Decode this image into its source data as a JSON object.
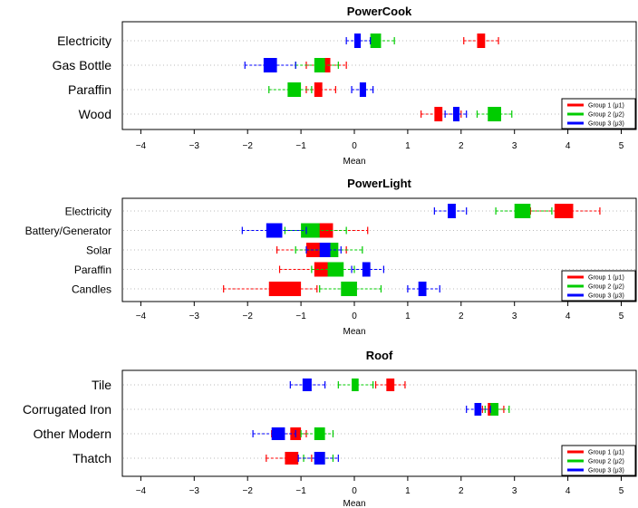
{
  "colors": {
    "group1": "#ff0000",
    "group2": "#00cc00",
    "group3": "#0000ff",
    "grid": "#bbbbbb"
  },
  "legend": {
    "position": "bottom-right",
    "labels": [
      "Group 1 (μ1)",
      "Group 2 (μ2)",
      "Group 3 (μ3)"
    ]
  },
  "chart_data": [
    {
      "type": "box",
      "title": "PowerCook",
      "xlabel": "Mean",
      "xlim": [
        -4.5,
        5.3
      ],
      "xticks": [
        -4,
        -3,
        -2,
        -1,
        0,
        1,
        2,
        3,
        4,
        5
      ],
      "categories": [
        "Electricity",
        "Gas Bottle",
        "Paraffin",
        "Wood"
      ],
      "series": [
        {
          "name": "Group 1 (μ1)",
          "values": [
            {
              "whisker": [
                2.05,
                2.7
              ],
              "box": [
                2.3,
                2.45
              ]
            },
            {
              "whisker": [
                -0.9,
                -0.15
              ],
              "box": [
                -0.6,
                -0.45
              ]
            },
            {
              "whisker": [
                -0.9,
                -0.35
              ],
              "box": [
                -0.75,
                -0.6
              ]
            },
            {
              "whisker": [
                1.25,
                2.0
              ],
              "box": [
                1.5,
                1.65
              ]
            }
          ]
        },
        {
          "name": "Group 2 (μ2)",
          "values": [
            {
              "whisker": [
                0.1,
                0.75
              ],
              "box": [
                0.3,
                0.5
              ]
            },
            {
              "whisker": [
                -1.1,
                -0.3
              ],
              "box": [
                -0.75,
                -0.55
              ]
            },
            {
              "whisker": [
                -1.6,
                -0.8
              ],
              "box": [
                -1.25,
                -1.0
              ]
            },
            {
              "whisker": [
                2.3,
                2.95
              ],
              "box": [
                2.5,
                2.75
              ]
            }
          ]
        },
        {
          "name": "Group 3 (μ3)",
          "values": [
            {
              "whisker": [
                -0.15,
                0.3
              ],
              "box": [
                0.0,
                0.12
              ]
            },
            {
              "whisker": [
                -2.05,
                -1.1
              ],
              "box": [
                -1.7,
                -1.45
              ]
            },
            {
              "whisker": [
                -0.05,
                0.35
              ],
              "box": [
                0.1,
                0.22
              ]
            },
            {
              "whisker": [
                1.7,
                2.1
              ],
              "box": [
                1.85,
                1.97
              ]
            }
          ]
        }
      ]
    },
    {
      "type": "box",
      "title": "PowerLight",
      "xlabel": "Mean",
      "xlim": [
        -4.5,
        5.3
      ],
      "xticks": [
        -4,
        -3,
        -2,
        -1,
        0,
        1,
        2,
        3,
        4,
        5
      ],
      "categories": [
        "Electricity",
        "Battery/Generator",
        "Solar",
        "Paraffin",
        "Candles"
      ],
      "series": [
        {
          "name": "Group 1 (μ1)",
          "values": [
            {
              "whisker": [
                3.3,
                4.6
              ],
              "box": [
                3.75,
                4.1
              ]
            },
            {
              "whisker": [
                -0.8,
                0.25
              ],
              "box": [
                -0.7,
                -0.4
              ]
            },
            {
              "whisker": [
                -1.45,
                -0.15
              ],
              "box": [
                -0.9,
                -0.6
              ]
            },
            {
              "whisker": [
                -1.4,
                -0.3
              ],
              "box": [
                -0.75,
                -0.45
              ]
            },
            {
              "whisker": [
                -2.45,
                -0.7
              ],
              "box": [
                -1.6,
                -1.0
              ]
            }
          ]
        },
        {
          "name": "Group 2 (μ2)",
          "values": [
            {
              "whisker": [
                2.65,
                3.7
              ],
              "box": [
                3.0,
                3.3
              ]
            },
            {
              "whisker": [
                -1.3,
                -0.15
              ],
              "box": [
                -1.0,
                -0.65
              ]
            },
            {
              "whisker": [
                -1.1,
                0.15
              ],
              "box": [
                -0.5,
                -0.3
              ]
            },
            {
              "whisker": [
                -0.8,
                0.0
              ],
              "box": [
                -0.5,
                -0.2
              ]
            },
            {
              "whisker": [
                -0.65,
                0.5
              ],
              "box": [
                -0.25,
                0.05
              ]
            }
          ]
        },
        {
          "name": "Group 3 (μ3)",
          "values": [
            {
              "whisker": [
                1.5,
                2.1
              ],
              "box": [
                1.75,
                1.9
              ]
            },
            {
              "whisker": [
                -2.1,
                -0.9
              ],
              "box": [
                -1.65,
                -1.35
              ]
            },
            {
              "whisker": [
                -0.9,
                -0.25
              ],
              "box": [
                -0.65,
                -0.45
              ]
            },
            {
              "whisker": [
                -0.05,
                0.55
              ],
              "box": [
                0.15,
                0.3
              ]
            },
            {
              "whisker": [
                1.0,
                1.6
              ],
              "box": [
                1.2,
                1.35
              ]
            }
          ]
        }
      ]
    },
    {
      "type": "box",
      "title": "Roof",
      "xlabel": "Mean",
      "xlim": [
        -4.5,
        5.3
      ],
      "xticks": [
        -4,
        -3,
        -2,
        -1,
        0,
        1,
        2,
        3,
        4,
        5
      ],
      "categories": [
        "Tile",
        "Corrugated Iron",
        "Other Modern",
        "Thatch"
      ],
      "series": [
        {
          "name": "Group 1 (μ1)",
          "values": [
            {
              "whisker": [
                0.4,
                0.95
              ],
              "box": [
                0.6,
                0.75
              ]
            },
            {
              "whisker": [
                2.4,
                2.8
              ],
              "box": [
                2.5,
                2.6
              ]
            },
            {
              "whisker": [
                -1.55,
                -0.9
              ],
              "box": [
                -1.2,
                -1.0
              ]
            },
            {
              "whisker": [
                -1.65,
                -0.8
              ],
              "box": [
                -1.3,
                -1.05
              ]
            }
          ]
        },
        {
          "name": "Group 2 (μ2)",
          "values": [
            {
              "whisker": [
                -0.3,
                0.35
              ],
              "box": [
                -0.05,
                0.08
              ]
            },
            {
              "whisker": [
                2.45,
                2.9
              ],
              "box": [
                2.55,
                2.7
              ]
            },
            {
              "whisker": [
                -1.0,
                -0.4
              ],
              "box": [
                -0.75,
                -0.55
              ]
            },
            {
              "whisker": [
                -0.95,
                -0.4
              ],
              "box": [
                -0.75,
                -0.55
              ]
            }
          ]
        },
        {
          "name": "Group 3 (μ3)",
          "values": [
            {
              "whisker": [
                -1.2,
                -0.55
              ],
              "box": [
                -0.97,
                -0.8
              ]
            },
            {
              "whisker": [
                2.1,
                2.55
              ],
              "box": [
                2.25,
                2.38
              ]
            },
            {
              "whisker": [
                -1.9,
                -1.1
              ],
              "box": [
                -1.55,
                -1.3
              ]
            },
            {
              "whisker": [
                -1.05,
                -0.3
              ],
              "box": [
                -0.75,
                -0.55
              ]
            }
          ]
        }
      ]
    }
  ]
}
